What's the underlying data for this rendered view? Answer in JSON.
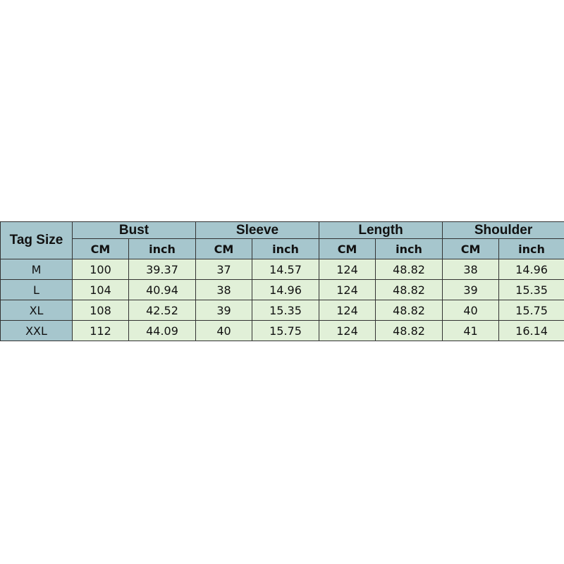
{
  "header": {
    "tag_size": "Tag Size",
    "groups": [
      "Bust",
      "Sleeve",
      "Length",
      "Shoulder"
    ],
    "units": [
      "CM",
      "inch"
    ]
  },
  "rows": [
    {
      "size": "M",
      "values": [
        "100",
        "39.37",
        "37",
        "14.57",
        "124",
        "48.82",
        "38",
        "14.96"
      ]
    },
    {
      "size": "L",
      "values": [
        "104",
        "40.94",
        "38",
        "14.96",
        "124",
        "48.82",
        "39",
        "15.35"
      ]
    },
    {
      "size": "XL",
      "values": [
        "108",
        "42.52",
        "39",
        "15.35",
        "124",
        "48.82",
        "40",
        "15.75"
      ]
    },
    {
      "size": "XXL",
      "values": [
        "112",
        "44.09",
        "40",
        "15.75",
        "124",
        "48.82",
        "41",
        "16.14"
      ]
    }
  ],
  "colors": {
    "header": "#a6c6cd",
    "cell": "#e1f0d8"
  }
}
